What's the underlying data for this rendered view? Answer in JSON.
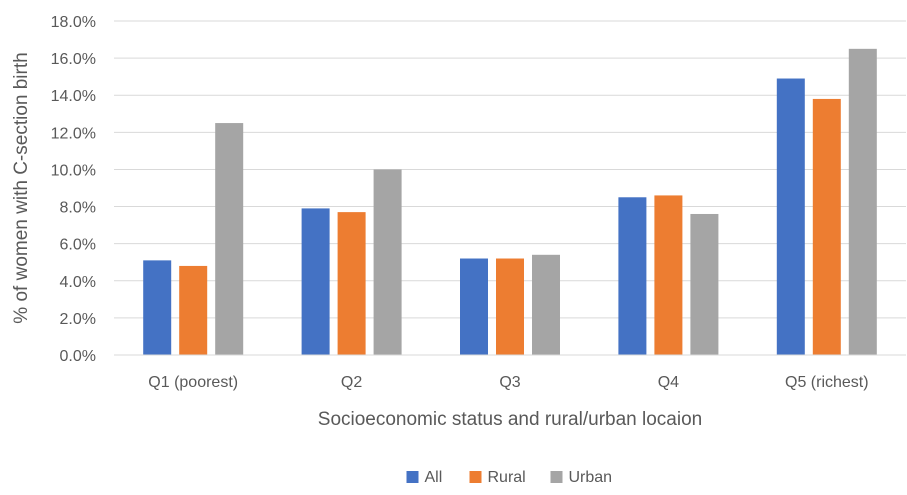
{
  "chart_data": {
    "type": "bar",
    "title": "",
    "xlabel": "Socioeconomic status and rural/urban locaion",
    "ylabel": "% of women with C-section birth",
    "categories": [
      "Q1 (poorest)",
      "Q2",
      "Q3",
      "Q4",
      "Q5 (richest)"
    ],
    "series": [
      {
        "name": "All",
        "color": "#4472C4",
        "values": [
          5.1,
          7.9,
          5.2,
          8.5,
          14.9
        ]
      },
      {
        "name": "Rural",
        "color": "#ED7D31",
        "values": [
          4.8,
          7.7,
          5.2,
          8.6,
          13.8
        ]
      },
      {
        "name": "Urban",
        "color": "#A5A5A5",
        "values": [
          12.5,
          10.0,
          5.4,
          7.6,
          16.5
        ]
      }
    ],
    "ylim": [
      0,
      18
    ],
    "ytick_step": 2,
    "ytick_labels": [
      "0.0%",
      "2.0%",
      "4.0%",
      "6.0%",
      "8.0%",
      "10.0%",
      "12.0%",
      "14.0%",
      "16.0%",
      "18.0%"
    ],
    "grid": true,
    "legend_position": "bottom"
  }
}
